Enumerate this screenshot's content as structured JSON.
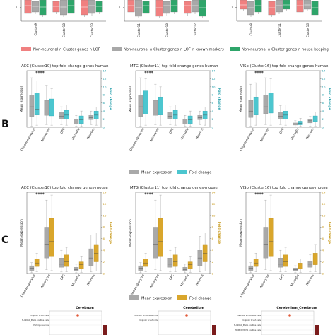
{
  "panel_labels": {
    "b": "B",
    "c": "C"
  },
  "top_strip": {
    "groups": [
      {
        "categories": [
          "Cluster9",
          "Cluster10",
          "Cluster13"
        ]
      },
      {
        "categories": [
          "Cluster11",
          "Cluster10",
          "Cluster17"
        ]
      },
      {
        "categories": [
          "Cluster8",
          "Cluster11",
          "Cluster16"
        ]
      }
    ],
    "tick_label": "1",
    "legend": [
      {
        "label": "Non-neuronal ∩ Cluster genes ∩ LOF",
        "color": "#f08080"
      },
      {
        "label": "Non-neuronal ∩ Cluster genes ∩ LOF ∩ known markers",
        "color": "#a8a8a8"
      },
      {
        "label": "Non-neuronal ∩ Cluster genes ∩ house keeping",
        "color": "#2ea56a"
      }
    ]
  },
  "legend_b": [
    {
      "label": "Mean expression",
      "color": "#a9a9a9"
    },
    {
      "label": "Fold change",
      "color": "#4cc6cf"
    }
  ],
  "legend_c": [
    {
      "label": "Mean expression",
      "color": "#a9a9a9"
    },
    {
      "label": "Fold change",
      "color": "#d9a62c"
    }
  ],
  "heatmap_titles": [
    "Cerebrum",
    "Cerebellum",
    "Cerebellum_Cerebrum"
  ],
  "heatmap_rows": [
    [
      "Unipolar brush cells",
      "SLC26A4_PLVAL positive cells",
      "Purkinje neurons"
    ],
    [
      "Vascular endothelial cells",
      "Unipolar brush cells"
    ],
    [
      "Vascular endothelial cells",
      "Unipolar brush cells",
      "SLC26A4_PLVAL positive cells",
      "MOBC1 MEIS1 positive cells"
    ]
  ],
  "chart_data": [
    {
      "type": "box",
      "title": "ACC (Cluster10) top fold change genes-human",
      "ylabel": "Mean expression",
      "y2label": "Fold change",
      "y2ticks": [
        0,
        2,
        4,
        6,
        8,
        10,
        12,
        14
      ],
      "y2lim": [
        0,
        14
      ],
      "categories": [
        "Oligodendrocytes",
        "Astrocytes",
        "OPC",
        "Microglia",
        "Neurons"
      ],
      "annotation": "****",
      "series": [
        {
          "name": "Mean expression",
          "boxes": [
            [
              0.02,
              0.2,
              0.38,
              0.6,
              0.92
            ],
            [
              0.05,
              0.22,
              0.32,
              0.5,
              0.78
            ],
            [
              0.05,
              0.15,
              0.2,
              0.28,
              0.38
            ],
            [
              0.02,
              0.06,
              0.1,
              0.15,
              0.22
            ],
            [
              0.05,
              0.14,
              0.18,
              0.22,
              0.3
            ]
          ]
        },
        {
          "name": "Fold change",
          "boxes": [
            [
              0.5,
              3.0,
              4.5,
              8.5,
              11.5
            ],
            [
              0.5,
              2.8,
              5.0,
              7.0,
              9.5
            ],
            [
              0.5,
              2.0,
              3.0,
              4.2,
              5.5
            ],
            [
              0.2,
              0.9,
              1.8,
              2.8,
              4.0
            ],
            [
              0.5,
              2.0,
              3.0,
              4.0,
              5.0
            ]
          ]
        }
      ]
    },
    {
      "type": "box",
      "title": "MTG (Cluster11) top fold change genes-human",
      "ylabel": "Mean expression",
      "y2label": "Fold change",
      "y2ticks": [
        0,
        2,
        4,
        6,
        8,
        10,
        12,
        14
      ],
      "y2lim": [
        0,
        14
      ],
      "categories": [
        "Oligodendrocytes",
        "Astrocytes",
        "OPC",
        "Microglia",
        "Neurons"
      ],
      "annotation": "****",
      "series": [
        {
          "name": "Mean expression",
          "boxes": [
            [
              0.02,
              0.2,
              0.38,
              0.6,
              0.92
            ],
            [
              0.05,
              0.22,
              0.32,
              0.5,
              0.8
            ],
            [
              0.05,
              0.15,
              0.2,
              0.28,
              0.38
            ],
            [
              0.02,
              0.06,
              0.1,
              0.15,
              0.22
            ],
            [
              0.05,
              0.14,
              0.18,
              0.22,
              0.3
            ]
          ]
        },
        {
          "name": "Fold change",
          "boxes": [
            [
              0.5,
              3.2,
              5.0,
              9.0,
              12.0
            ],
            [
              0.5,
              3.0,
              5.5,
              7.5,
              10.0
            ],
            [
              0.5,
              2.0,
              3.0,
              4.2,
              5.5
            ],
            [
              0.2,
              0.9,
              1.8,
              2.8,
              4.0
            ],
            [
              0.5,
              2.0,
              3.0,
              4.0,
              5.0
            ]
          ]
        }
      ]
    },
    {
      "type": "box",
      "title": "VISp (Cluster16) top fold change genes-human",
      "ylabel": "Mean expression",
      "y2label": "Fold change",
      "y2ticks": [
        0,
        2,
        4,
        6,
        8,
        10,
        12,
        14
      ],
      "y2lim": [
        0,
        14
      ],
      "categories": [
        "Oligodendrocytes",
        "Astrocytes",
        "OPC",
        "Microglia",
        "Neurons"
      ],
      "annotation": "****",
      "series": [
        {
          "name": "Mean expression",
          "boxes": [
            [
              0.02,
              0.18,
              0.3,
              0.5,
              0.8
            ],
            [
              0.05,
              0.25,
              0.38,
              0.6,
              0.92
            ],
            [
              0.05,
              0.15,
              0.2,
              0.28,
              0.4
            ],
            [
              0.01,
              0.04,
              0.06,
              0.08,
              0.12
            ],
            [
              0.02,
              0.08,
              0.12,
              0.15,
              0.2
            ]
          ]
        },
        {
          "name": "Fold change",
          "boxes": [
            [
              0.5,
              3.0,
              5.0,
              7.5,
              11.0
            ],
            [
              0.5,
              3.5,
              5.5,
              8.5,
              12.0
            ],
            [
              0.5,
              2.0,
              3.0,
              4.0,
              5.5
            ],
            [
              0.2,
              0.6,
              1.0,
              1.5,
              2.2
            ],
            [
              0.3,
              1.4,
              2.0,
              2.8,
              3.8
            ]
          ]
        }
      ]
    },
    {
      "type": "box",
      "title": "ACC (Cluster10) top fold change genes-mouse",
      "ylabel": "Mean expression",
      "y2label": "Fold change",
      "y2ticks": [
        0,
        2,
        4,
        6,
        8,
        10,
        12,
        14
      ],
      "y2lim": [
        0,
        14
      ],
      "categories": [
        "Oligodendrocytes",
        "Astrocytes",
        "OPC",
        "Microglia",
        "Neurons"
      ],
      "annotation": "****",
      "series": [
        {
          "name": "Mean expression",
          "boxes": [
            [
              0.01,
              0.04,
              0.07,
              0.1,
              0.14
            ],
            [
              0.05,
              0.2,
              0.38,
              0.6,
              0.95
            ],
            [
              0.02,
              0.08,
              0.12,
              0.2,
              0.3
            ],
            [
              0.01,
              0.03,
              0.05,
              0.08,
              0.12
            ],
            [
              0.02,
              0.1,
              0.2,
              0.32,
              0.5
            ]
          ]
        },
        {
          "name": "Fold change",
          "boxes": [
            [
              0.3,
              1.2,
              1.8,
              2.5,
              3.5
            ],
            [
              0.5,
              3.0,
              5.5,
              9.5,
              13.5
            ],
            [
              0.3,
              1.2,
              2.0,
              3.2,
              4.5
            ],
            [
              0.2,
              0.8,
              1.5,
              2.0,
              3.0
            ],
            [
              0.4,
              2.0,
              3.5,
              5.0,
              7.0
            ]
          ]
        }
      ]
    },
    {
      "type": "box",
      "title": "MTG (Cluster11) top fold change genes-mouse",
      "ylabel": "Mean expression",
      "y2label": "Fold change",
      "y2ticks": [
        0,
        2,
        4,
        6,
        8,
        10,
        12,
        14
      ],
      "y2lim": [
        0,
        14
      ],
      "categories": [
        "Oligodendrocytes",
        "Astrocytes",
        "OPC",
        "Microglia",
        "Neurons"
      ],
      "annotation": "****",
      "series": [
        {
          "name": "Mean expression",
          "boxes": [
            [
              0.01,
              0.04,
              0.07,
              0.1,
              0.14
            ],
            [
              0.05,
              0.2,
              0.38,
              0.6,
              0.95
            ],
            [
              0.02,
              0.08,
              0.12,
              0.2,
              0.3
            ],
            [
              0.01,
              0.03,
              0.05,
              0.08,
              0.12
            ],
            [
              0.02,
              0.1,
              0.2,
              0.3,
              0.48
            ]
          ]
        },
        {
          "name": "Fold change",
          "boxes": [
            [
              0.3,
              1.2,
              1.8,
              2.5,
              3.5
            ],
            [
              0.5,
              3.0,
              5.5,
              9.5,
              13.5
            ],
            [
              0.3,
              1.2,
              2.0,
              3.2,
              4.5
            ],
            [
              0.2,
              0.8,
              1.5,
              2.0,
              3.0
            ],
            [
              0.4,
              2.0,
              3.5,
              5.0,
              7.0
            ]
          ]
        }
      ]
    },
    {
      "type": "box",
      "title": "VISp (Cluster16) top fold change genes-mouse",
      "ylabel": "Mean expression",
      "y2label": "Fold change",
      "y2ticks": [
        0,
        2,
        4,
        6,
        8,
        10,
        12,
        14
      ],
      "y2lim": [
        0,
        14
      ],
      "categories": [
        "Oligodendrocytes",
        "Astrocytes",
        "OPC",
        "Microglia",
        "Neurons"
      ],
      "annotation": "****",
      "series": [
        {
          "name": "Mean expression",
          "boxes": [
            [
              0.01,
              0.04,
              0.07,
              0.1,
              0.14
            ],
            [
              0.05,
              0.2,
              0.38,
              0.6,
              0.95
            ],
            [
              0.02,
              0.08,
              0.12,
              0.2,
              0.3
            ],
            [
              0.01,
              0.03,
              0.05,
              0.07,
              0.1
            ],
            [
              0.02,
              0.08,
              0.12,
              0.16,
              0.24
            ]
          ]
        },
        {
          "name": "Fold change",
          "boxes": [
            [
              0.3,
              1.2,
              1.8,
              2.5,
              3.5
            ],
            [
              0.5,
              3.0,
              5.5,
              9.5,
              13.5
            ],
            [
              0.3,
              1.2,
              2.0,
              3.2,
              4.5
            ],
            [
              0.2,
              0.8,
              1.3,
              1.8,
              2.5
            ],
            [
              0.3,
              1.5,
              2.5,
              3.5,
              5.0
            ]
          ]
        }
      ]
    }
  ]
}
